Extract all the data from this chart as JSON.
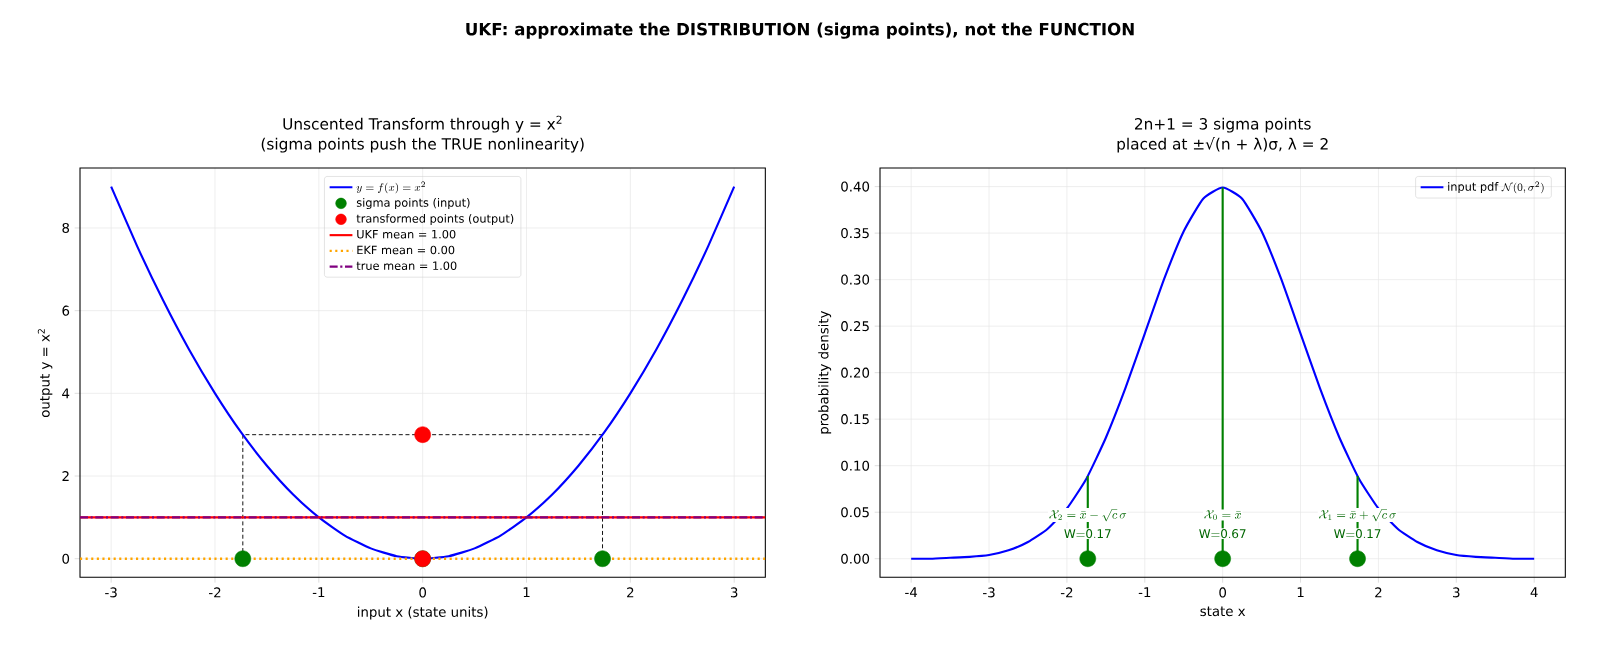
{
  "chart_data": [
    {
      "type": "line",
      "title": "Unscented Transform through y = x$^{2}$",
      "subtitle": "(sigma points push the TRUE nonlinearity)",
      "xlabel": "input x  (state units)",
      "ylabel": "output y = x$^{2}$",
      "annotations": [
        "UKF: approximate the DISTRIBUTION (sigma points), not the FUNCTION"
      ],
      "xlim": [
        -3.3,
        3.3
      ],
      "ylim": [
        -0.45,
        9.45
      ],
      "xticks": [
        -3,
        -2,
        -1,
        0,
        1,
        2,
        3
      ],
      "yticks": [
        0,
        2,
        4,
        6,
        8
      ],
      "grid": true,
      "legend": "top",
      "series": [
        {
          "color": "#000000",
          "line_style": "dashed",
          "x": [
            -1.732,
            -1.732,
            1.732,
            1.732
          ],
          "values": [
            0,
            3,
            3,
            0
          ]
        },
        {
          "name": "y = f(x) = x^2",
          "color": "#0000ff",
          "line_style": "solid",
          "x": [
            -3,
            -2.75,
            -2.5,
            -2.25,
            -2,
            -1.75,
            -1.5,
            -1.25,
            -1,
            -0.75,
            -0.5,
            -0.25,
            0,
            0.25,
            0.5,
            0.75,
            1,
            1.25,
            1.5,
            1.75,
            2,
            2.25,
            2.5,
            2.75,
            3
          ],
          "values": [
            9,
            7.56,
            6.25,
            5.06,
            4,
            3.06,
            2.25,
            1.56,
            1,
            0.56,
            0.25,
            0.06,
            0,
            0.06,
            0.25,
            0.56,
            1,
            1.56,
            2.25,
            3.06,
            4,
            5.06,
            6.25,
            7.56,
            9
          ]
        },
        {
          "type": "scatter",
          "name": "\\mbox{sigma points (input)}",
          "color": "#008000",
          "marker": "circle",
          "x": [
            -1.732,
            0,
            1.732
          ],
          "values": [
            0,
            0,
            0
          ]
        },
        {
          "type": "scatter",
          "name": "\\mbox{transformed points (output)}",
          "color": "#ff0000",
          "marker": "circle",
          "x": [
            0,
            0
          ],
          "values": [
            3,
            0
          ]
        },
        {
          "name": "\\mbox{UKF mean = 1.00}",
          "color": "#ff0000",
          "line_style": "solid",
          "x": [
            -3.3,
            3.3
          ],
          "values": [
            1,
            1
          ]
        },
        {
          "name": "\\mbox{EKF mean = 0.00}",
          "color": "#ffa500",
          "line_style": "dotted",
          "x": [
            -3.3,
            3.3
          ],
          "values": [
            0,
            0
          ]
        },
        {
          "name": "\\mbox{true mean = 1.00}",
          "color": "#800080",
          "line_style": "dashdot",
          "x": [
            -3.3,
            3.3
          ],
          "values": [
            1,
            1
          ]
        }
      ]
    },
    {
      "type": "line",
      "title": "2n+1 = 3 sigma points",
      "subtitle": "placed at ±√(n + λ)σ, λ = 2",
      "xlabel": "state x",
      "ylabel": "probability density",
      "annotations": [
        {
          "text": "\\mathcal{X}_2 = \\bar{x} - \\sqrt{c}\\,\\sigma",
          "x": -1.732,
          "y": 0.047
        },
        {
          "text": "\\mathrm{W{=}0.17}",
          "x": -1.732,
          "y": 0.027
        },
        {
          "text": "\\mathcal{X}_0 = \\bar{x}",
          "x": 0,
          "y": 0.047
        },
        {
          "text": "\\mathrm{W{=}0.67}",
          "x": 0,
          "y": 0.027
        },
        {
          "text": "\\mathcal{X}_1 = \\bar{x} + \\sqrt{c}\\,\\sigma",
          "x": 1.732,
          "y": 0.047
        },
        {
          "text": "\\mathrm{W{=}0.17}",
          "x": 1.732,
          "y": 0.027
        }
      ],
      "xlim": [
        -4.4,
        4.4
      ],
      "ylim": [
        -0.02,
        0.42
      ],
      "xticks": [
        -4,
        -3,
        -2,
        -1,
        0,
        1,
        2,
        3,
        4
      ],
      "yticks": [
        {
          "value": 0,
          "label": "0.00"
        },
        {
          "value": 0.05,
          "label": "0.05"
        },
        {
          "value": 0.1,
          "label": "0.10"
        },
        {
          "value": 0.15,
          "label": "0.15"
        },
        {
          "value": 0.2,
          "label": "0.20"
        },
        {
          "value": 0.25,
          "label": "0.25"
        },
        {
          "value": 0.3,
          "label": "0.30"
        },
        {
          "value": 0.35,
          "label": "0.35"
        },
        {
          "value": 0.4,
          "label": "0.40"
        }
      ],
      "grid": true,
      "legend": "top right",
      "series": [
        {
          "name": "\\mbox{input pdf }\\mathcal{N}(0, \\sigma^2)",
          "color": "#0000ff",
          "line_style": "solid",
          "x": [
            -4,
            -3.75,
            -3.5,
            -3.25,
            -3,
            -2.75,
            -2.5,
            -2.25,
            -2,
            -1.75,
            -1.5,
            -1.25,
            -1,
            -0.75,
            -0.5,
            -0.25,
            0,
            0.25,
            0.5,
            0.75,
            1,
            1.25,
            1.5,
            1.75,
            2,
            2.25,
            2.5,
            2.75,
            3,
            3.25,
            3.5,
            3.75,
            4
          ],
          "values": [
            0.0,
            0.0,
            0.001,
            0.002,
            0.004,
            0.009,
            0.018,
            0.032,
            0.054,
            0.086,
            0.13,
            0.183,
            0.242,
            0.301,
            0.352,
            0.387,
            0.399,
            0.387,
            0.352,
            0.301,
            0.242,
            0.183,
            0.13,
            0.086,
            0.054,
            0.032,
            0.018,
            0.009,
            0.004,
            0.002,
            0.001,
            0.0,
            0.0
          ]
        },
        {
          "color": "#008000",
          "line_style": "solid",
          "x": [
            -1.732,
            -1.732
          ],
          "values": [
            0,
            0.089
          ]
        },
        {
          "color": "#008000",
          "line_style": "solid",
          "x": [
            0,
            0
          ],
          "values": [
            0,
            0.399
          ]
        },
        {
          "color": "#008000",
          "line_style": "solid",
          "x": [
            1.732,
            1.732
          ],
          "values": [
            0,
            0.089
          ]
        },
        {
          "type": "scatter",
          "color": "#008000",
          "marker": "circle",
          "x": [
            -1.732,
            0,
            1.732
          ],
          "values": [
            0,
            0,
            0
          ]
        }
      ]
    }
  ]
}
